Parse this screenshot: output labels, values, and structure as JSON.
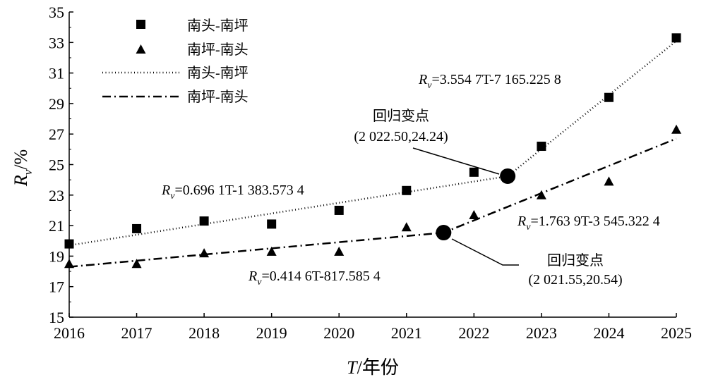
{
  "chart_data": {
    "type": "scatter",
    "xlabel": "T/年份",
    "ylabel": "Rv/%",
    "xlim": [
      2016,
      2025
    ],
    "ylim": [
      15,
      35
    ],
    "x_ticks": [
      2016,
      2017,
      2018,
      2019,
      2020,
      2021,
      2022,
      2023,
      2024,
      2025
    ],
    "y_ticks": [
      15,
      17,
      19,
      21,
      23,
      25,
      27,
      29,
      31,
      33,
      35
    ],
    "grid": false,
    "legend_position": "top-left",
    "series": [
      {
        "name": "南头-南坪",
        "kind": "points",
        "marker": "square",
        "x": [
          2016,
          2017,
          2018,
          2019,
          2020,
          2021,
          2022,
          2023,
          2024,
          2025
        ],
        "y": [
          19.8,
          20.8,
          21.3,
          21.1,
          22.0,
          23.3,
          24.5,
          26.2,
          29.4,
          33.3
        ]
      },
      {
        "name": "南坪-南头",
        "kind": "points",
        "marker": "triangle",
        "x": [
          2016,
          2017,
          2018,
          2019,
          2020,
          2021,
          2022,
          2023,
          2024,
          2025
        ],
        "y": [
          18.5,
          18.5,
          19.2,
          19.3,
          19.3,
          20.9,
          21.7,
          23.0,
          23.9,
          27.3
        ]
      },
      {
        "name": "南头-南坪",
        "kind": "fit",
        "dash": "dotted",
        "x": [
          2016,
          2022.5,
          2025
        ],
        "y": [
          19.7,
          24.24,
          33.1
        ]
      },
      {
        "name": "南坪-南头",
        "kind": "fit",
        "dash": "dashdot",
        "x": [
          2016,
          2021.55,
          2025
        ],
        "y": [
          18.3,
          20.54,
          26.7
        ]
      }
    ],
    "change_points": [
      {
        "x": 2022.5,
        "y": 24.24
      },
      {
        "x": 2021.55,
        "y": 20.54
      }
    ],
    "annotations": {
      "eq1_upper": "=3.554 7T-7 165.225 8",
      "eq1_lower": "=0.696 1T-1 383.573 4",
      "eq2_upper": "=1.763 9T-3 545.322 4",
      "eq2_lower": "=0.414 6T-817.585 4",
      "cp_label": "回归变点",
      "cp1_coords": "(2 022.50,24.24)",
      "cp2_coords": "(2 021.55,20.54)",
      "R": "R",
      "v": "v"
    },
    "axis_text": {
      "y_R": "R",
      "y_v": "v",
      "y_unit": "/%",
      "x_T": "T",
      "x_unit": "/年份"
    }
  }
}
